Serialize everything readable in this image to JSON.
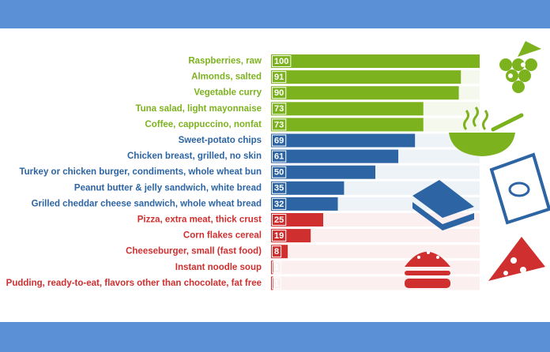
{
  "chart_data": {
    "type": "bar",
    "orientation": "horizontal",
    "categories": [
      "Raspberries, raw",
      "Almonds, salted",
      "Vegetable curry",
      "Tuna salad, light mayonnaise",
      "Coffee, cappuccino, nonfat",
      "Sweet-potato chips",
      "Chicken breast, grilled, no skin",
      "Turkey or chicken burger, condiments, whole wheat bun",
      "Peanut butter & jelly sandwich, white bread",
      "Grilled cheddar cheese sandwich, whole wheat bread",
      "Pizza, extra meat, thick crust",
      "Corn flakes cereal",
      "Cheeseburger, small (fast food)",
      "Instant noodle soup",
      "Pudding, ready-to-eat, flavors other than chocolate, fat free"
    ],
    "values": [
      100,
      91,
      90,
      73,
      73,
      69,
      61,
      50,
      35,
      32,
      25,
      19,
      8,
      1,
      1
    ],
    "colors": [
      "#7db21f",
      "#7db21f",
      "#7db21f",
      "#7db21f",
      "#7db21f",
      "#2c64a4",
      "#2c64a4",
      "#2c64a4",
      "#2c64a4",
      "#2c64a4",
      "#cf2f2f",
      "#cf2f2f",
      "#cf2f2f",
      "#cf2f2f",
      "#cf2f2f"
    ]
  }
}
